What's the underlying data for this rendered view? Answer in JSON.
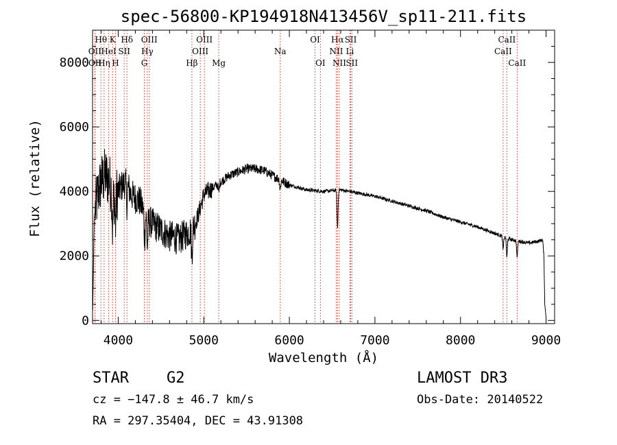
{
  "chart_data": {
    "type": "line",
    "title": "spec-56800-KP194918N413456V_sp11-211.fits",
    "xlabel": "Wavelength (Å)",
    "ylabel": "Flux (relative)",
    "xlim": [
      3700,
      9100
    ],
    "ylim": [
      -100,
      9000
    ],
    "xticks": [
      4000,
      5000,
      6000,
      7000,
      8000,
      9000
    ],
    "yticks": [
      0,
      2000,
      4000,
      6000,
      8000
    ],
    "xtick_labels": [
      "4000",
      "5000",
      "6000",
      "7000",
      "8000",
      "9000"
    ],
    "ytick_labels": [
      "0",
      "2000",
      "4000",
      "6000",
      "8000"
    ],
    "spectrum_anchors": {
      "wavelength": [
        3700,
        3720,
        3760,
        3800,
        3850,
        3900,
        3950,
        4000,
        4050,
        4100,
        4150,
        4200,
        4250,
        4300,
        4350,
        4400,
        4450,
        4500,
        4550,
        4600,
        4650,
        4700,
        4750,
        4800,
        4850,
        4900,
        4950,
        5000,
        5100,
        5200,
        5300,
        5400,
        5500,
        5600,
        5700,
        5800,
        5900,
        6000,
        6200,
        6400,
        6600,
        6800,
        7000,
        7200,
        7400,
        7600,
        7800,
        8000,
        8200,
        8400,
        8500,
        8600,
        8700,
        8800,
        8900,
        8960,
        8975,
        8985,
        9000
      ],
      "flux": [
        0,
        3200,
        3900,
        4300,
        4500,
        4300,
        3900,
        4000,
        4200,
        4300,
        3900,
        3800,
        3700,
        3400,
        3100,
        3000,
        2900,
        2800,
        2700,
        2600,
        2600,
        2500,
        2600,
        2700,
        2800,
        3000,
        3400,
        3900,
        4100,
        4300,
        4500,
        4600,
        4700,
        4700,
        4650,
        4500,
        4350,
        4200,
        4050,
        4000,
        4050,
        3950,
        3850,
        3700,
        3550,
        3400,
        3200,
        3050,
        2900,
        2700,
        2600,
        2500,
        2450,
        2400,
        2450,
        2500,
        2000,
        500,
        100
      ]
    },
    "absorption_features": [
      {
        "wavelength": 3934,
        "depth": 1200
      },
      {
        "wavelength": 3968,
        "depth": 1000
      },
      {
        "wavelength": 4102,
        "depth": 700
      },
      {
        "wavelength": 4308,
        "depth": 800
      },
      {
        "wavelength": 4340,
        "depth": 900
      },
      {
        "wavelength": 4861,
        "depth": 900
      },
      {
        "wavelength": 5175,
        "depth": 300
      },
      {
        "wavelength": 5893,
        "depth": 300
      },
      {
        "wavelength": 6563,
        "depth": 1200
      },
      {
        "wavelength": 8498,
        "depth": 400
      },
      {
        "wavelength": 8542,
        "depth": 600
      },
      {
        "wavelength": 8662,
        "depth": 500
      }
    ],
    "reference_lines": [
      {
        "label": "Hθ",
        "wavelength": 3798,
        "row": 0
      },
      {
        "label": "OII",
        "wavelength": 3727,
        "row": 1
      },
      {
        "label": "OII",
        "wavelength": 3729,
        "row": 2
      },
      {
        "label": "Hη",
        "wavelength": 3835,
        "row": 2
      },
      {
        "label": "K",
        "wavelength": 3934,
        "row": 0
      },
      {
        "label": "HeI",
        "wavelength": 3889,
        "row": 1
      },
      {
        "label": "H",
        "wavelength": 3968,
        "row": 2
      },
      {
        "label": "SII",
        "wavelength": 4070,
        "row": 1
      },
      {
        "label": "Hδ",
        "wavelength": 4102,
        "row": 0
      },
      {
        "label": "OIII",
        "wavelength": 4363,
        "row": 0
      },
      {
        "label": "Hγ",
        "wavelength": 4340,
        "row": 1
      },
      {
        "label": "G",
        "wavelength": 4305,
        "row": 2
      },
      {
        "label": "Hβ",
        "wavelength": 4861,
        "row": 2
      },
      {
        "label": "OIII",
        "wavelength": 5007,
        "row": 0
      },
      {
        "label": "OIII",
        "wavelength": 4959,
        "row": 1
      },
      {
        "label": "Mg",
        "wavelength": 5175,
        "row": 2
      },
      {
        "label": "Na",
        "wavelength": 5893,
        "row": 1
      },
      {
        "label": "OI",
        "wavelength": 6300,
        "row": 0
      },
      {
        "label": "OI",
        "wavelength": 6363,
        "row": 2
      },
      {
        "label": "Hα",
        "wavelength": 6563,
        "row": 0
      },
      {
        "label": "NII",
        "wavelength": 6548,
        "row": 1
      },
      {
        "label": "NII",
        "wavelength": 6584,
        "row": 2
      },
      {
        "label": "SII",
        "wavelength": 6717,
        "row": 0
      },
      {
        "label": "Li",
        "wavelength": 6708,
        "row": 1
      },
      {
        "label": "SII",
        "wavelength": 6731,
        "row": 2
      },
      {
        "label": "CaII",
        "wavelength": 8542,
        "row": 0
      },
      {
        "label": "CaII",
        "wavelength": 8498,
        "row": 1
      },
      {
        "label": "CaII",
        "wavelength": 8662,
        "row": 2
      }
    ]
  },
  "info": {
    "object_class": "STAR",
    "subclass": "G2",
    "survey": "LAMOST DR3",
    "cz": "cz = −147.8 ± 46.7 km/s",
    "obs_date": "Obs-Date: 20140522",
    "coords": "RA = 297.35404, DEC =  43.91308"
  },
  "colors": {
    "line_marker": "#c0392b",
    "spectrum": "#000000"
  }
}
